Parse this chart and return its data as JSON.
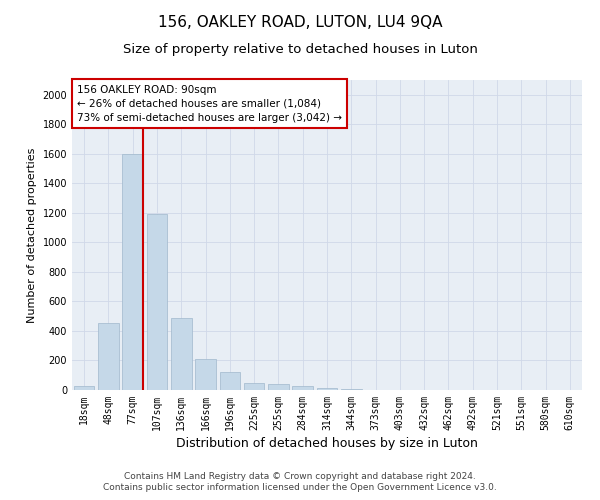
{
  "title": "156, OAKLEY ROAD, LUTON, LU4 9QA",
  "subtitle": "Size of property relative to detached houses in Luton",
  "xlabel": "Distribution of detached houses by size in Luton",
  "ylabel": "Number of detached properties",
  "categories": [
    "18sqm",
    "48sqm",
    "77sqm",
    "107sqm",
    "136sqm",
    "166sqm",
    "196sqm",
    "225sqm",
    "255sqm",
    "284sqm",
    "314sqm",
    "344sqm",
    "373sqm",
    "403sqm",
    "432sqm",
    "462sqm",
    "492sqm",
    "521sqm",
    "551sqm",
    "580sqm",
    "610sqm"
  ],
  "values": [
    30,
    455,
    1600,
    1190,
    490,
    210,
    125,
    45,
    40,
    25,
    15,
    5,
    0,
    0,
    0,
    0,
    0,
    0,
    0,
    0,
    0
  ],
  "bar_color": "#c5d8e8",
  "bar_edge_color": "#a0b8cc",
  "annotation_text": "156 OAKLEY ROAD: 90sqm\n← 26% of detached houses are smaller (1,084)\n73% of semi-detached houses are larger (3,042) →",
  "annotation_box_color": "#ffffff",
  "annotation_box_edge_color": "#cc0000",
  "grid_color": "#d0d8e8",
  "background_color": "#e8eef5",
  "footer_line1": "Contains HM Land Registry data © Crown copyright and database right 2024.",
  "footer_line2": "Contains public sector information licensed under the Open Government Licence v3.0.",
  "ylim": [
    0,
    2100
  ],
  "title_fontsize": 11,
  "subtitle_fontsize": 9.5,
  "xlabel_fontsize": 9,
  "ylabel_fontsize": 8,
  "tick_fontsize": 7,
  "footer_fontsize": 6.5
}
